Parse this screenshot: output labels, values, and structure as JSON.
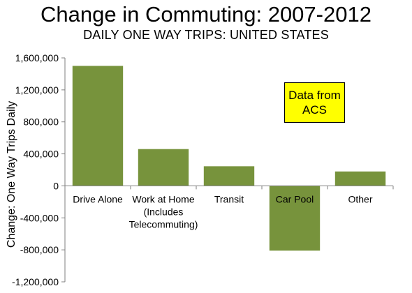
{
  "chart_data": {
    "type": "bar",
    "title": "Change in Commuting: 2007-2012",
    "subtitle": "DAILY ONE WAY TRIPS: UNITED STATES",
    "xlabel": "",
    "ylabel": "Change: One Way Trips Daily",
    "ylim": [
      -1200000,
      1600000
    ],
    "yticks": [
      1600000,
      1200000,
      800000,
      400000,
      0,
      -400000,
      -800000,
      -1200000
    ],
    "ytick_labels": [
      "1,600,000",
      "1,200,000",
      "800,000",
      "400,000",
      "0",
      "-400,000",
      "-800,000",
      "-1,200,000"
    ],
    "categories": [
      [
        "Drive Alone"
      ],
      [
        "Work at Home",
        "(Includes",
        "Telecommuting)"
      ],
      [
        "Transit"
      ],
      [
        "Car Pool"
      ],
      [
        "Other"
      ]
    ],
    "values": [
      1500000,
      460000,
      245000,
      -810000,
      180000
    ],
    "bar_color": "#77933c",
    "annotation": [
      "Data from",
      "ACS"
    ],
    "annotation_color": "#ffff00",
    "grid": false
  }
}
